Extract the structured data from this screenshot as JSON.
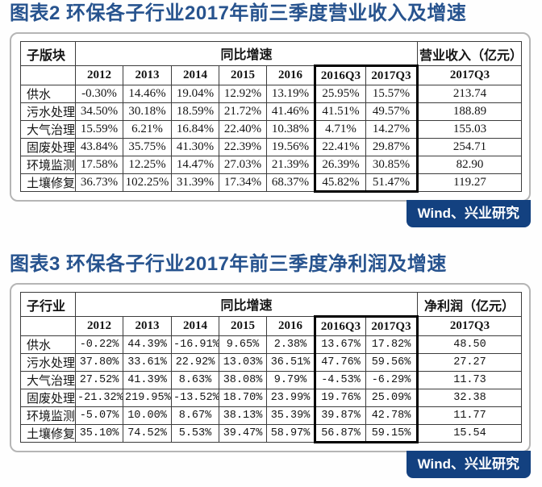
{
  "source_label": "Wind、兴业研究",
  "colors": {
    "title_blue": "#27538e",
    "badge_background": "#134180",
    "badge_text": "#ffffff",
    "table_border": "#3c3c3c",
    "highlight_box_border": "#000000",
    "card_border": "#b5b5b5"
  },
  "charts": [
    {
      "title": "图表2 环保各子行业2017年前三季度营业收入及增速",
      "header_left": "子版块",
      "header_growth": "同比增速",
      "header_value": "营业收入（亿元）",
      "year_headers": [
        "2012",
        "2013",
        "2014",
        "2015",
        "2016",
        "2016Q3",
        "2017Q3"
      ],
      "value_year": "2017Q3",
      "rows": [
        {
          "label": "供水",
          "growth": [
            "-0.30%",
            "14.46%",
            "19.04%",
            "12.92%",
            "13.19%",
            "25.95%",
            "15.57%"
          ],
          "value": "213.74"
        },
        {
          "label": "污水处理",
          "growth": [
            "34.50%",
            "30.18%",
            "18.59%",
            "21.72%",
            "41.46%",
            "41.51%",
            "49.57%"
          ],
          "value": "188.89"
        },
        {
          "label": "大气治理",
          "growth": [
            "15.59%",
            "6.21%",
            "16.84%",
            "22.40%",
            "10.38%",
            "4.71%",
            "14.27%"
          ],
          "value": "155.03"
        },
        {
          "label": "固废处理",
          "growth": [
            "43.84%",
            "35.75%",
            "41.30%",
            "22.39%",
            "19.56%",
            "22.41%",
            "29.87%"
          ],
          "value": "254.71"
        },
        {
          "label": "环境监测",
          "growth": [
            "17.58%",
            "12.25%",
            "14.47%",
            "27.03%",
            "21.39%",
            "26.39%",
            "30.85%"
          ],
          "value": "82.90"
        },
        {
          "label": "土壤修复",
          "growth": [
            "36.73%",
            "102.25%",
            "31.39%",
            "17.34%",
            "68.37%",
            "45.82%",
            "51.47%"
          ],
          "value": "119.27"
        }
      ],
      "source": "Wind、兴业研究"
    },
    {
      "title": "图表3 环保各子行业2017年前三季度净利润及增速",
      "header_left": "子行业",
      "header_growth": "同比增速",
      "header_value": "净利润（亿元）",
      "year_headers": [
        "2012",
        "2013",
        "2014",
        "2015",
        "2016",
        "2016Q3",
        "2017Q3"
      ],
      "value_year": "2017Q3",
      "rows": [
        {
          "label": "供水",
          "growth": [
            "-0.22%",
            "44.39%",
            "-16.91%",
            "9.65%",
            "2.38%",
            "13.67%",
            "17.82%"
          ],
          "value": "48.50"
        },
        {
          "label": "污水处理",
          "growth": [
            "37.80%",
            "33.61%",
            "22.92%",
            "13.03%",
            "36.51%",
            "47.76%",
            "59.56%"
          ],
          "value": "27.27"
        },
        {
          "label": "大气治理",
          "growth": [
            "27.52%",
            "41.39%",
            "8.63%",
            "38.08%",
            "9.79%",
            "-4.53%",
            "-6.29%"
          ],
          "value": "11.73"
        },
        {
          "label": "固废处理",
          "growth": [
            "-21.32%",
            "219.95%",
            "-13.52%",
            "18.70%",
            "23.99%",
            "19.76%",
            "25.09%"
          ],
          "value": "32.38"
        },
        {
          "label": "环境监测",
          "growth": [
            "-5.07%",
            "10.00%",
            "8.67%",
            "38.13%",
            "35.39%",
            "39.87%",
            "42.78%"
          ],
          "value": "11.77"
        },
        {
          "label": "土壤修复",
          "growth": [
            "35.10%",
            "74.52%",
            "5.53%",
            "39.47%",
            "58.97%",
            "56.87%",
            "59.15%"
          ],
          "value": "15.54"
        }
      ],
      "source": "Wind、兴业研究"
    }
  ]
}
